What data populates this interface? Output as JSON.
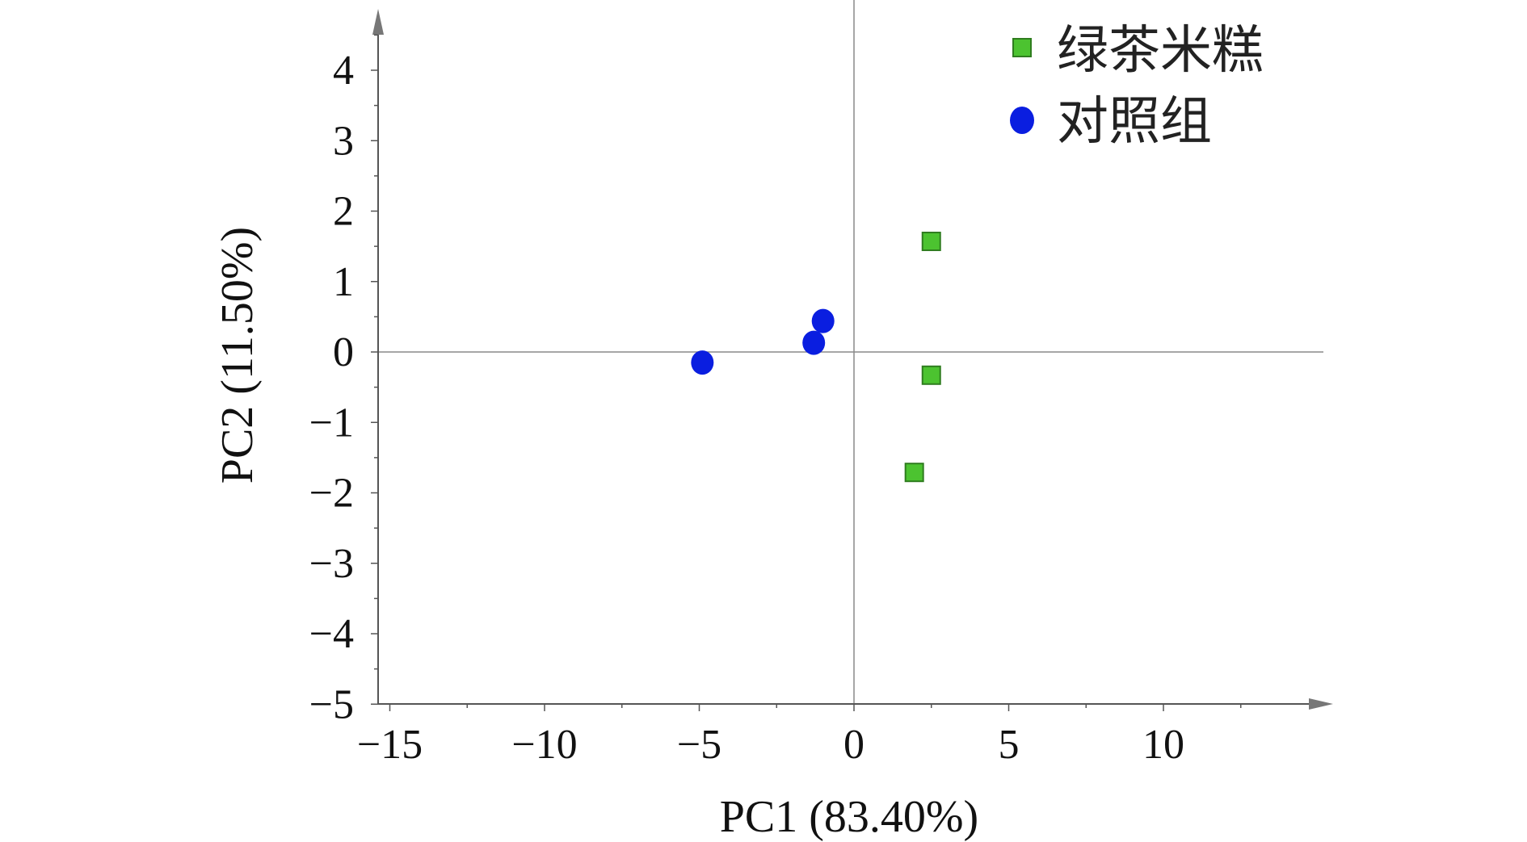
{
  "chart_data": {
    "type": "scatter",
    "title": "",
    "xlabel": "PC1 (83.40%)",
    "ylabel": "PC2 (11.50%)",
    "xlim": [
      -15,
      15
    ],
    "ylim": [
      -5,
      5
    ],
    "xticks": [
      -15,
      -10,
      -5,
      0,
      5,
      10
    ],
    "yticks": [
      -5,
      -4,
      -3,
      -2,
      -1,
      0,
      1,
      2,
      3,
      4
    ],
    "tick_labels": {
      "x": [
        "−15",
        "−10",
        "−5",
        "0",
        "5",
        "10"
      ],
      "y": [
        "−5",
        "−4",
        "−3",
        "−2",
        "−1",
        "0",
        "1",
        "2",
        "3",
        "4"
      ]
    },
    "grid": false,
    "zero_lines": true,
    "legend_position": "top-right",
    "series": [
      {
        "name": "绿茶米糕",
        "marker": "square",
        "color": "#4cc330",
        "points": [
          [
            2.5,
            1.57
          ],
          [
            2.5,
            -0.33
          ],
          [
            1.95,
            -1.71
          ]
        ]
      },
      {
        "name": "对照组",
        "marker": "circle",
        "color": "#0a1ee0",
        "points": [
          [
            -4.9,
            -0.15
          ],
          [
            -1.3,
            0.13
          ],
          [
            -1.0,
            0.44
          ]
        ]
      }
    ]
  }
}
